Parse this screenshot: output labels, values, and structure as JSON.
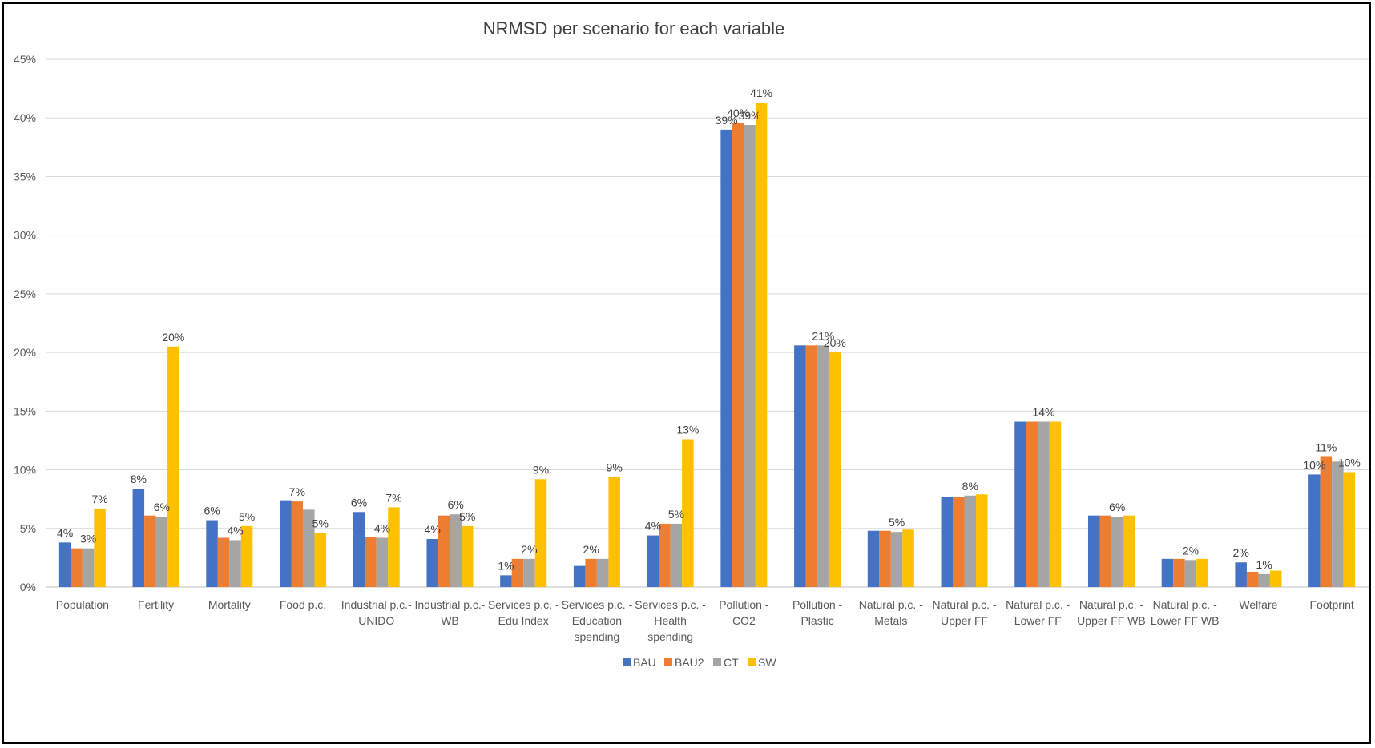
{
  "chart_data": {
    "type": "bar",
    "title": "NRMSD per scenario for each variable",
    "xlabel": "",
    "ylabel": "",
    "ylim": [
      0,
      45
    ],
    "y_ticks": [
      "0%",
      "5%",
      "10%",
      "15%",
      "20%",
      "25%",
      "30%",
      "35%",
      "40%",
      "45%"
    ],
    "grid": true,
    "legend_position": "bottom",
    "categories": [
      [
        "Population"
      ],
      [
        "Fertility"
      ],
      [
        "Mortality"
      ],
      [
        "Food p.c."
      ],
      [
        "Industrial p.c.-",
        "UNIDO"
      ],
      [
        "Industrial p.c.-",
        "WB"
      ],
      [
        "Services p.c. -",
        "Edu Index"
      ],
      [
        "Services p.c. -",
        "Education",
        "spending"
      ],
      [
        "Services p.c. -",
        "Health",
        "spending"
      ],
      [
        "Pollution -",
        "CO2"
      ],
      [
        "Pollution -",
        "Plastic"
      ],
      [
        "Natural p.c. -",
        "Metals"
      ],
      [
        "Natural p.c. -",
        "Upper FF"
      ],
      [
        "Natural p.c. -",
        "Lower FF"
      ],
      [
        "Natural p.c. -",
        "Upper FF WB"
      ],
      [
        "Natural p.c. -",
        "Lower FF WB"
      ],
      [
        "Welfare"
      ],
      [
        "Footprint"
      ]
    ],
    "series": [
      {
        "name": "BAU",
        "color": "#4472C4",
        "values": [
          3.8,
          8.4,
          5.7,
          7.4,
          6.4,
          4.1,
          1.0,
          1.8,
          4.4,
          39.0,
          20.6,
          4.8,
          7.7,
          14.1,
          6.1,
          2.4,
          2.1,
          9.6
        ],
        "labels": [
          "4%",
          "8%",
          "6%",
          "",
          "6%",
          "4%",
          "1%",
          "",
          "4%",
          "39%",
          "",
          "",
          "",
          "",
          "",
          "",
          "2%",
          "10%"
        ]
      },
      {
        "name": "BAU2",
        "color": "#ED7D31",
        "values": [
          3.3,
          6.1,
          4.2,
          7.3,
          4.3,
          6.1,
          2.4,
          2.4,
          5.4,
          39.6,
          20.6,
          4.8,
          7.7,
          14.1,
          6.1,
          2.4,
          1.3,
          11.1
        ],
        "labels": [
          "",
          "",
          "",
          "7%",
          "",
          "",
          "",
          "2%",
          "",
          "40%",
          "",
          "",
          "",
          "",
          "",
          "",
          "",
          "11%"
        ]
      },
      {
        "name": "CT",
        "color": "#A5A5A5",
        "values": [
          3.3,
          6.0,
          4.0,
          6.6,
          4.2,
          6.2,
          2.4,
          2.4,
          5.4,
          39.4,
          20.6,
          4.7,
          7.8,
          14.1,
          6.0,
          2.3,
          1.1,
          10.7
        ],
        "labels": [
          "3%",
          "6%",
          "4%",
          "",
          "4%",
          "6%",
          "2%",
          "",
          "5%",
          "39%",
          "21%",
          "5%",
          "8%",
          "14%",
          "6%",
          "2%",
          "1%",
          ""
        ]
      },
      {
        "name": "SW",
        "color": "#FFC000",
        "values": [
          6.7,
          20.5,
          5.2,
          4.6,
          6.8,
          5.2,
          9.2,
          9.4,
          12.6,
          41.3,
          20.0,
          4.9,
          7.9,
          14.1,
          6.1,
          2.4,
          1.4,
          9.8
        ],
        "labels": [
          "7%",
          "20%",
          "5%",
          "5%",
          "7%",
          "5%",
          "9%",
          "9%",
          "13%",
          "41%",
          "20%",
          "",
          "",
          "",
          "",
          "",
          "",
          "10%"
        ]
      }
    ]
  }
}
